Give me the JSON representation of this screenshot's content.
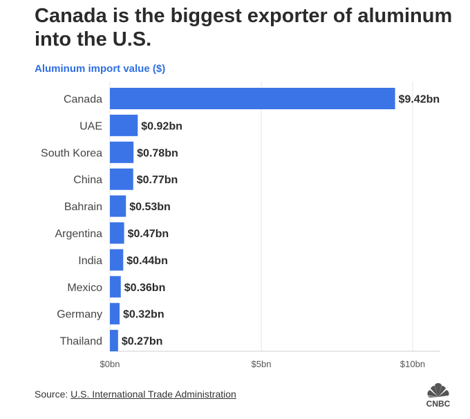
{
  "title": "Canada is the biggest exporter of aluminum into the U.S.",
  "subtitle": "Aluminum import value ($)",
  "source_label": "Source:",
  "source_link": "U.S. International Trade Administration",
  "logo_text": "CNBC",
  "colors": {
    "bar": "#3b74e6",
    "subtitle": "#2f6fe0",
    "grid": "#e6e6e6"
  },
  "chart_data": {
    "type": "bar",
    "orientation": "horizontal",
    "title": "Canada is the biggest exporter of aluminum into the U.S.",
    "subtitle": "Aluminum import value ($)",
    "categories": [
      "Canada",
      "UAE",
      "South Korea",
      "China",
      "Bahrain",
      "Argentina",
      "India",
      "Mexico",
      "Germany",
      "Thailand"
    ],
    "values": [
      9.42,
      0.92,
      0.78,
      0.77,
      0.53,
      0.47,
      0.44,
      0.36,
      0.32,
      0.27
    ],
    "value_labels": [
      "$9.42bn",
      "$0.92bn",
      "$0.78bn",
      "$0.77bn",
      "$0.53bn",
      "$0.47bn",
      "$0.44bn",
      "$0.36bn",
      "$0.32bn",
      "$0.27bn"
    ],
    "xlim": [
      0,
      10
    ],
    "x_ticks": [
      0,
      5,
      10
    ],
    "x_tick_labels": [
      "$0bn",
      "$5bn",
      "$10bn"
    ],
    "xlabel": "",
    "ylabel": "",
    "grid": true
  }
}
